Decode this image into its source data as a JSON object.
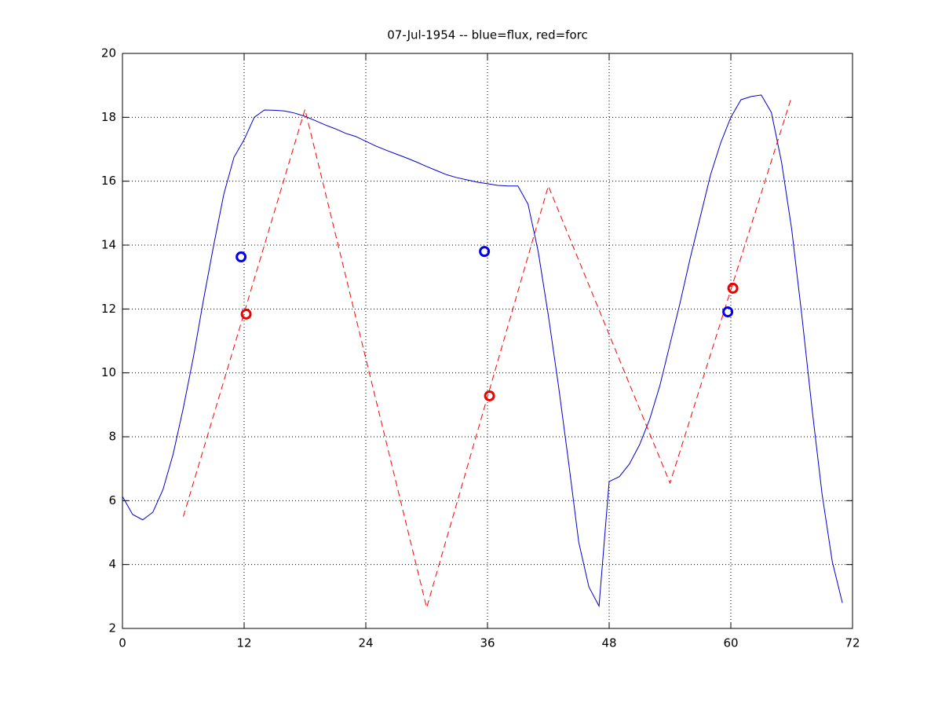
{
  "chart_data": {
    "type": "line",
    "title": "07-Jul-1954 -- blue=flux, red=forc",
    "xlim": [
      0,
      72
    ],
    "xticks": [
      0,
      12,
      24,
      36,
      48,
      60,
      72
    ],
    "ylim": [
      2,
      20
    ],
    "yticks": [
      2,
      4,
      6,
      8,
      10,
      12,
      14,
      16,
      18,
      20
    ],
    "grid": true,
    "series": [
      {
        "color": "#0000cc",
        "style": "solid",
        "marker": "none",
        "x": [
          0,
          1,
          2,
          3,
          4,
          5,
          6,
          7,
          8,
          9,
          10,
          11,
          12,
          13,
          14,
          15,
          16,
          17,
          18,
          19,
          20,
          21,
          22,
          23,
          24,
          25,
          26,
          27,
          28,
          29,
          30,
          31,
          32,
          33,
          34,
          35,
          36,
          37,
          38,
          39,
          40,
          41,
          42,
          43,
          44,
          45,
          46,
          47,
          48,
          49,
          50,
          51,
          52,
          53,
          54,
          55,
          56,
          57,
          58,
          59,
          60,
          61,
          62,
          63,
          64,
          65,
          66,
          67,
          68,
          69,
          70,
          71
        ],
        "values": [
          6.13,
          5.57,
          5.4,
          5.64,
          6.35,
          7.46,
          8.9,
          10.5,
          12.3,
          14.0,
          15.6,
          16.75,
          17.3,
          18.0,
          18.23,
          18.22,
          18.2,
          18.13,
          18.03,
          17.9,
          17.76,
          17.64,
          17.5,
          17.4,
          17.25,
          17.1,
          16.97,
          16.85,
          16.73,
          16.6,
          16.46,
          16.33,
          16.2,
          16.11,
          16.04,
          15.97,
          15.92,
          15.87,
          15.85,
          15.85,
          15.28,
          13.8,
          11.8,
          9.6,
          7.2,
          4.7,
          3.3,
          2.7,
          6.6,
          6.75,
          7.15,
          7.75,
          8.55,
          9.6,
          10.9,
          12.2,
          13.6,
          14.9,
          16.2,
          17.2,
          18.0,
          18.55,
          18.65,
          18.7,
          18.15,
          16.6,
          14.5,
          11.8,
          8.9,
          6.2,
          4.1,
          2.8
        ]
      },
      {
        "color": "#ff0000",
        "style": "dashed",
        "marker": "none",
        "x": [
          6,
          18,
          30,
          42,
          54,
          66
        ],
        "values": [
          5.5,
          18.25,
          2.65,
          15.85,
          6.55,
          18.65
        ]
      },
      {
        "color": "#0000ee",
        "style": "none",
        "marker": "circle",
        "x": [
          11.7,
          35.7,
          59.7
        ],
        "values": [
          13.63,
          13.8,
          11.91
        ]
      },
      {
        "color": "#ee0000",
        "style": "none",
        "marker": "circle",
        "x": [
          12.2,
          36.2,
          60.2
        ],
        "values": [
          11.84,
          9.28,
          12.65
        ]
      }
    ]
  }
}
